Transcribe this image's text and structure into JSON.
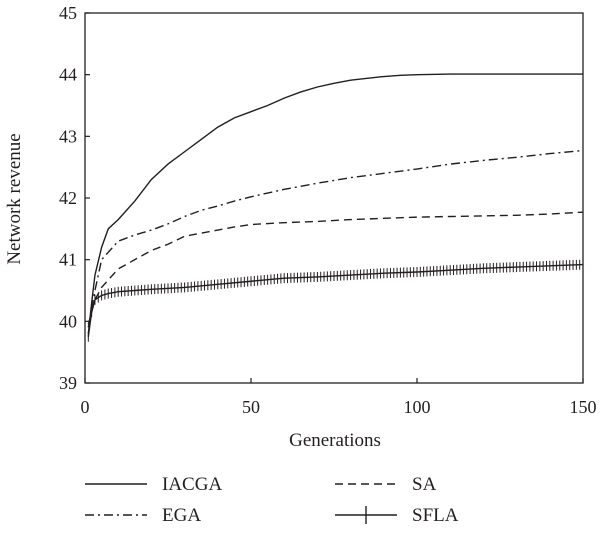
{
  "chart_data": {
    "type": "line",
    "xlabel": "Generations",
    "ylabel": "Network revenue",
    "xlim": [
      0,
      150
    ],
    "ylim": [
      39,
      45
    ],
    "xticks": [
      "0",
      "50",
      "100",
      "150"
    ],
    "yticks": [
      "39",
      "40",
      "41",
      "42",
      "43",
      "44",
      "45"
    ],
    "grid": false,
    "legend_position": "bottom",
    "series": [
      {
        "name": "IACGA",
        "style": "solid",
        "x": [
          1,
          2,
          3,
          5,
          7,
          10,
          15,
          20,
          25,
          30,
          35,
          40,
          45,
          50,
          55,
          60,
          65,
          70,
          75,
          80,
          85,
          90,
          95,
          100,
          110,
          120,
          130,
          140,
          150
        ],
        "y": [
          39.8,
          40.3,
          40.75,
          41.2,
          41.5,
          41.65,
          41.95,
          42.3,
          42.55,
          42.75,
          42.95,
          43.15,
          43.3,
          43.4,
          43.5,
          43.62,
          43.72,
          43.8,
          43.86,
          43.91,
          43.94,
          43.97,
          43.99,
          44.0,
          44.01,
          44.01,
          44.01,
          44.01,
          44.01
        ]
      },
      {
        "name": "SA",
        "style": "dashed",
        "x": [
          1,
          3,
          5,
          10,
          15,
          20,
          25,
          30,
          35,
          40,
          45,
          50,
          60,
          70,
          80,
          90,
          100,
          110,
          120,
          130,
          140,
          150
        ],
        "y": [
          39.95,
          40.35,
          40.55,
          40.85,
          41.0,
          41.15,
          41.25,
          41.38,
          41.43,
          41.48,
          41.53,
          41.57,
          41.6,
          41.62,
          41.65,
          41.67,
          41.69,
          41.7,
          41.71,
          41.72,
          41.74,
          41.77
        ]
      },
      {
        "name": "EGA",
        "style": "dashdot",
        "x": [
          1,
          3,
          5,
          10,
          15,
          20,
          25,
          30,
          35,
          40,
          45,
          50,
          60,
          70,
          80,
          90,
          100,
          110,
          120,
          130,
          140,
          150
        ],
        "y": [
          39.9,
          40.5,
          41.0,
          41.3,
          41.4,
          41.48,
          41.58,
          41.7,
          41.8,
          41.87,
          41.95,
          42.02,
          42.14,
          42.24,
          42.33,
          42.4,
          42.47,
          42.55,
          42.61,
          42.66,
          42.72,
          42.77
        ]
      },
      {
        "name": "SFLA",
        "style": "solid-marker",
        "x": [
          1,
          2,
          3,
          5,
          7,
          10,
          15,
          20,
          30,
          40,
          50,
          60,
          70,
          80,
          90,
          100,
          110,
          120,
          130,
          140,
          150
        ],
        "y": [
          39.75,
          40.15,
          40.35,
          40.42,
          40.45,
          40.48,
          40.5,
          40.52,
          40.55,
          40.6,
          40.65,
          40.7,
          40.72,
          40.75,
          40.78,
          40.8,
          40.83,
          40.86,
          40.88,
          40.9,
          40.92
        ]
      }
    ]
  }
}
